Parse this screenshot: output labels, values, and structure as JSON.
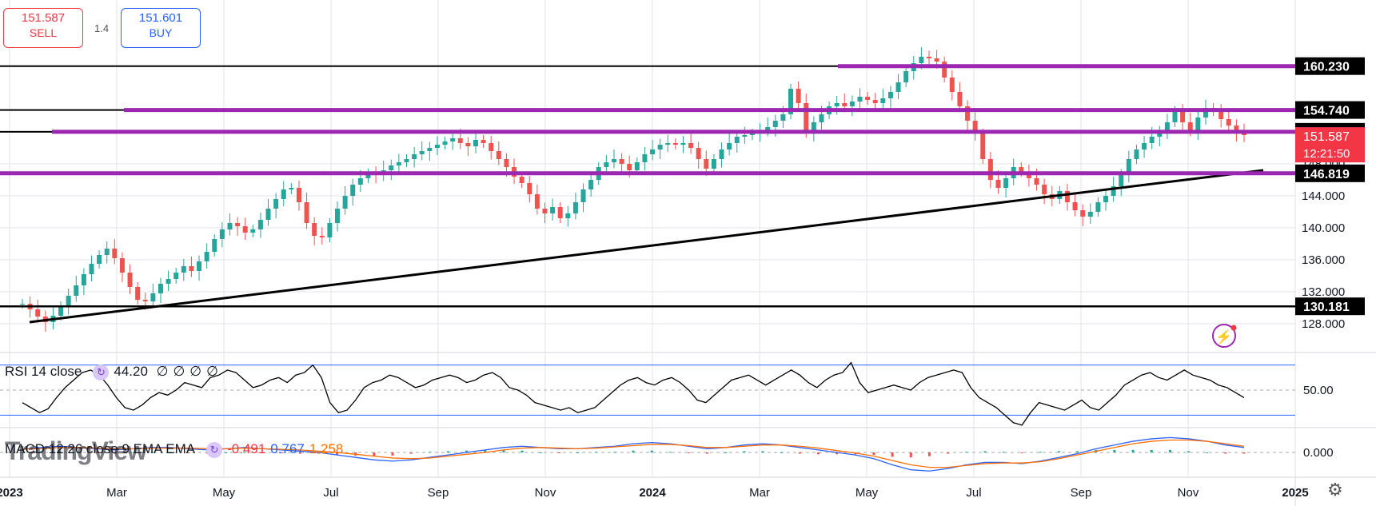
{
  "quote": {
    "sell_price": "151.587",
    "sell_label": "SELL",
    "buy_price": "151.601",
    "buy_label": "BUY",
    "spread": "1.4"
  },
  "chart_data": {
    "type": "candlestick",
    "price_range": [
      124.5,
      168.5
    ],
    "price_ticks": [
      128.0,
      132.0,
      136.0,
      140.0,
      144.0,
      148.0
    ],
    "price_tick_labels": [
      "128.000",
      "132.000",
      "136.000",
      "140.000",
      "144.000",
      "148.000"
    ],
    "x_axis_labels": [
      "2023",
      "Mar",
      "May",
      "Jul",
      "Sep",
      "Nov",
      "2024",
      "Mar",
      "May",
      "Jul",
      "Sep",
      "Nov",
      "2025"
    ],
    "close_series": [
      130.5,
      129.8,
      128.9,
      128.2,
      129.0,
      130.2,
      131.5,
      132.8,
      134.2,
      135.5,
      136.6,
      137.4,
      136.2,
      134.4,
      132.6,
      131.0,
      130.8,
      131.8,
      133.0,
      133.6,
      134.4,
      135.2,
      134.6,
      135.8,
      137.0,
      138.6,
      139.8,
      140.6,
      140.2,
      139.4,
      139.8,
      141.0,
      142.4,
      143.6,
      144.8,
      145.0,
      143.2,
      140.6,
      139.0,
      138.8,
      140.6,
      142.4,
      144.0,
      145.4,
      146.2,
      146.8,
      146.6,
      147.2,
      147.8,
      148.2,
      148.6,
      149.2,
      149.6,
      150.0,
      150.4,
      150.8,
      151.2,
      150.6,
      150.2,
      151.0,
      150.6,
      149.6,
      148.6,
      147.6,
      146.4,
      145.6,
      144.2,
      142.4,
      141.8,
      142.6,
      141.2,
      141.8,
      143.2,
      144.8,
      146.0,
      147.6,
      148.2,
      148.6,
      148.0,
      147.2,
      148.2,
      149.2,
      149.8,
      150.4,
      150.6,
      150.4,
      150.6,
      150.0,
      148.6,
      147.4,
      148.6,
      149.8,
      150.6,
      151.4,
      151.6,
      151.8,
      152.2,
      152.6,
      153.4,
      154.2,
      157.4,
      155.6,
      152.0,
      153.2,
      154.2,
      155.2,
      155.6,
      155.2,
      155.8,
      156.4,
      156.0,
      155.6,
      156.2,
      157.0,
      158.2,
      159.6,
      160.6,
      161.4,
      161.2,
      160.8,
      158.8,
      157.0,
      155.2,
      153.4,
      151.8,
      148.6,
      146.0,
      145.0,
      146.2,
      147.6,
      147.0,
      146.2,
      145.4,
      144.2,
      143.6,
      144.6,
      143.2,
      142.2,
      141.4,
      142.0,
      143.2,
      144.0,
      145.2,
      146.6,
      148.6,
      149.8,
      150.6,
      151.4,
      152.0,
      153.2,
      154.6,
      153.2,
      152.2,
      153.8,
      155.0,
      154.6,
      153.6,
      152.8,
      152.0,
      151.6
    ],
    "price_lines": [
      {
        "label": "160.230",
        "value": 160.23,
        "style": "purple"
      },
      {
        "label": "154.740",
        "value": 154.74,
        "style": "purple"
      },
      {
        "label": "152.013",
        "value": 152.013,
        "style": "purple"
      },
      {
        "label": "146.819",
        "value": 146.819,
        "style": "purple"
      },
      {
        "label": "130.181",
        "value": 130.181,
        "style": "black"
      }
    ],
    "current_price": {
      "label": "151.587",
      "countdown": "12:21:50",
      "value": 151.587
    },
    "rsi": {
      "title": "RSI 14 close",
      "value": "44.20",
      "extras": [
        "∅",
        "∅",
        "∅",
        "∅"
      ],
      "tick_label": "50.00",
      "upper": 70,
      "lower": 30,
      "series": [
        40,
        36,
        32,
        35,
        44,
        52,
        58,
        64,
        66,
        62,
        54,
        44,
        36,
        34,
        38,
        44,
        48,
        46,
        50,
        56,
        54,
        52,
        60,
        62,
        66,
        64,
        58,
        52,
        54,
        58,
        60,
        56,
        62,
        64,
        70,
        60,
        40,
        32,
        34,
        42,
        52,
        56,
        58,
        62,
        60,
        56,
        52,
        54,
        58,
        60,
        62,
        60,
        56,
        58,
        62,
        64,
        60,
        52,
        50,
        46,
        40,
        38,
        36,
        34,
        36,
        32,
        34,
        36,
        42,
        48,
        54,
        58,
        60,
        56,
        54,
        58,
        60,
        56,
        50,
        42,
        40,
        46,
        52,
        58,
        60,
        62,
        58,
        54,
        58,
        62,
        66,
        62,
        56,
        52,
        58,
        62,
        64,
        72,
        56,
        48,
        50,
        52,
        54,
        52,
        50,
        56,
        60,
        62,
        64,
        66,
        64,
        52,
        44,
        40,
        36,
        30,
        24,
        22,
        32,
        40,
        38,
        36,
        34,
        38,
        42,
        36,
        34,
        40,
        46,
        54,
        58,
        62,
        64,
        60,
        58,
        62,
        66,
        62,
        60,
        58,
        54,
        52,
        48,
        44
      ]
    },
    "macd": {
      "title": "MACD 12 26 close 9 EMA EMA",
      "value1": "-0.491",
      "value2": "0.767",
      "value3": "1.258",
      "tick_label": "0.000",
      "range": [
        -4,
        4
      ],
      "macd_series": [
        0.5,
        0.8,
        1.0,
        0.8,
        0.6,
        0.4,
        0.6,
        0.8,
        0.8,
        0.6,
        0.4,
        0.6,
        0.8,
        0.6,
        0.4,
        0.2,
        0.0,
        -0.4,
        -0.8,
        -1.2,
        -1.4,
        -1.2,
        -0.8,
        -0.4,
        0.0,
        0.4,
        0.8,
        1.0,
        0.8,
        0.6,
        0.6,
        0.8,
        1.0,
        1.4,
        1.6,
        1.4,
        1.0,
        0.6,
        0.8,
        1.2,
        1.4,
        1.2,
        0.8,
        0.4,
        0.0,
        -0.4,
        -1.0,
        -2.0,
        -2.8,
        -3.0,
        -2.6,
        -2.0,
        -1.6,
        -1.6,
        -1.8,
        -1.4,
        -0.8,
        -0.2,
        0.6,
        1.2,
        1.8,
        2.2,
        2.4,
        2.2,
        1.8,
        1.2,
        0.8
      ],
      "signal_series": [
        0.5,
        0.6,
        0.8,
        0.8,
        0.7,
        0.6,
        0.6,
        0.7,
        0.7,
        0.7,
        0.6,
        0.6,
        0.7,
        0.6,
        0.5,
        0.4,
        0.2,
        0.0,
        -0.3,
        -0.6,
        -0.9,
        -1.0,
        -0.9,
        -0.6,
        -0.3,
        0.0,
        0.4,
        0.7,
        0.8,
        0.7,
        0.6,
        0.7,
        0.9,
        1.1,
        1.3,
        1.3,
        1.1,
        0.8,
        0.8,
        1.0,
        1.2,
        1.2,
        1.0,
        0.7,
        0.3,
        -0.1,
        -0.6,
        -1.3,
        -2.0,
        -2.4,
        -2.4,
        -2.1,
        -1.8,
        -1.7,
        -1.7,
        -1.5,
        -1.0,
        -0.4,
        0.2,
        0.8,
        1.4,
        1.8,
        2.0,
        2.0,
        1.8,
        1.4,
        1.0
      ]
    }
  },
  "colors": {
    "purple": "#9c27b0",
    "red": "#f23645",
    "blue": "#2962ff",
    "macd_line": "#2962ff",
    "signal_line": "#ff6d00",
    "grid": "#e0e3eb",
    "up": "#26a69a",
    "down": "#ef5350"
  },
  "watermark": "TradingView",
  "icons": [
    "flash-icon",
    "settings-gear-icon"
  ]
}
